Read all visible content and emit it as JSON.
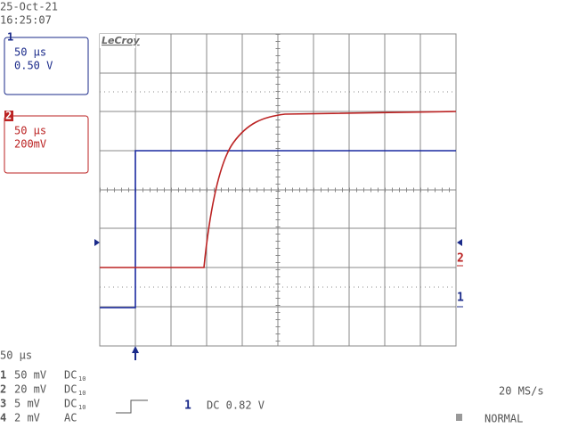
{
  "header": {
    "date": "25-Oct-21",
    "time": "16:25:07"
  },
  "channels": [
    {
      "number": "1",
      "timebase": "50 µs",
      "scale": "0.50 V"
    },
    {
      "number": "2",
      "timebase": "50 µs",
      "scale": "200mV"
    }
  ],
  "brand": "LeCroy",
  "markers": {
    "trace2": "2",
    "trace1": "1"
  },
  "footer": {
    "timebase": "50 µs",
    "inputs": [
      {
        "number": "1",
        "sensitivity": "50 mV",
        "coupling": "DC",
        "probe": "10"
      },
      {
        "number": "2",
        "sensitivity": "20 mV",
        "coupling": "DC",
        "probe": "10"
      },
      {
        "number": "3",
        "sensitivity": "5 mV",
        "coupling": "DC",
        "probe": "10"
      },
      {
        "number": "4",
        "sensitivity": "2 mV",
        "coupling": "AC"
      }
    ],
    "trigger_source": "1",
    "trigger_level": "DC 0.82 V",
    "sample_rate": "20 MS/s",
    "mode": "NORMAL"
  }
}
